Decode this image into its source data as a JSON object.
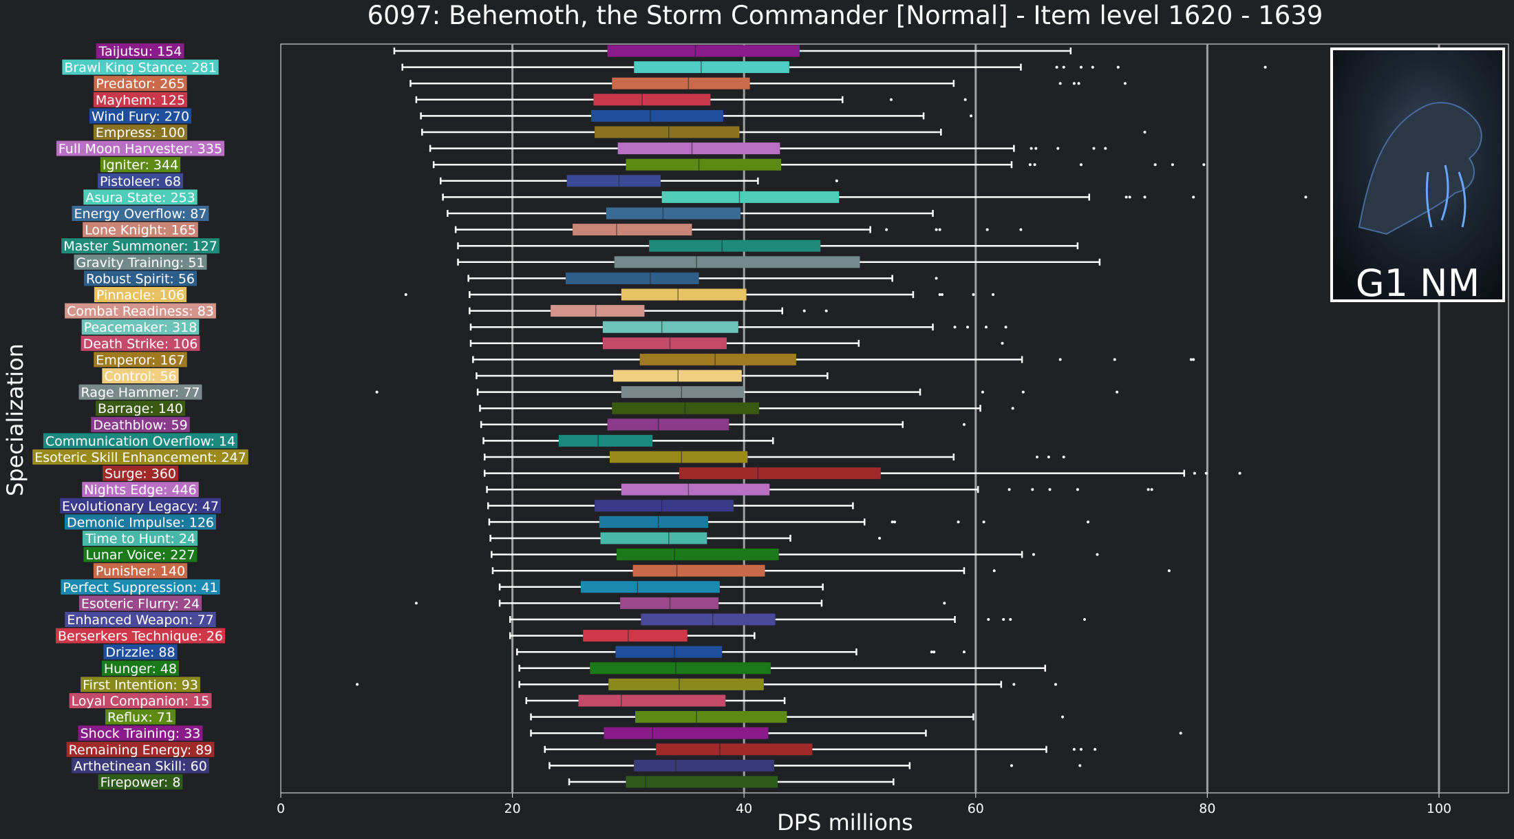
{
  "chart_data": {
    "type": "box",
    "title": "6097: Behemoth, the Storm Commander [Normal] - Item level 1620 - 1639",
    "xlabel": "DPS millions",
    "ylabel": "Specialization",
    "xlim": [
      0,
      106
    ],
    "xticks": [
      0,
      20,
      40,
      60,
      80,
      100
    ],
    "vertical_lines": [
      20,
      40,
      60,
      80,
      100
    ],
    "grid": false,
    "thumbnail_label": "G1 NM",
    "series": [
      {
        "label": "Taijutsu: 154",
        "color": "#8b1a8b",
        "min": 9.8,
        "q1": 28.2,
        "median": 35.8,
        "q3": 44.8,
        "max": 68.2,
        "outliers": []
      },
      {
        "label": "Brawl King Stance: 281",
        "color": "#4ecdc4",
        "min": 10.5,
        "q1": 30.5,
        "median": 36.3,
        "q3": 43.9,
        "max": 63.9,
        "outliers": [
          67.0,
          67.6,
          69.1,
          70.1,
          72.3,
          85.0
        ]
      },
      {
        "label": "Predator: 265",
        "color": "#c96a4a",
        "min": 11.2,
        "q1": 28.6,
        "median": 35.2,
        "q3": 40.5,
        "max": 58.1,
        "outliers": [
          67.3,
          68.5,
          68.9,
          72.9
        ]
      },
      {
        "label": "Mayhem: 125",
        "color": "#c8384a",
        "min": 11.7,
        "q1": 27.0,
        "median": 31.2,
        "q3": 37.1,
        "max": 48.5,
        "outliers": [
          52.7,
          59.1
        ]
      },
      {
        "label": "Wind Fury: 270",
        "color": "#1f4e9c",
        "min": 12.1,
        "q1": 26.8,
        "median": 31.9,
        "q3": 38.2,
        "max": 55.5,
        "outliers": [
          59.6
        ]
      },
      {
        "label": "Empress: 100",
        "color": "#8a7321",
        "min": 12.2,
        "q1": 27.1,
        "median": 33.5,
        "q3": 39.6,
        "max": 57.0,
        "outliers": [
          74.6
        ]
      },
      {
        "label": "Full Moon Harvester: 335",
        "color": "#b86fc4",
        "min": 12.9,
        "q1": 29.1,
        "median": 35.5,
        "q3": 43.1,
        "max": 63.3,
        "outliers": [
          64.8,
          65.2,
          67.1,
          70.2,
          71.2
        ]
      },
      {
        "label": "Igniter: 344",
        "color": "#5c8a12",
        "min": 13.2,
        "q1": 29.8,
        "median": 36.1,
        "q3": 43.2,
        "max": 63.1,
        "outliers": [
          64.7,
          65.1,
          69.1,
          75.5,
          77.0,
          79.7
        ]
      },
      {
        "label": "Pistoleer: 68",
        "color": "#3b4a96",
        "min": 13.8,
        "q1": 24.7,
        "median": 29.2,
        "q3": 32.8,
        "max": 41.2,
        "outliers": [
          48.0
        ]
      },
      {
        "label": "Asura State: 253",
        "color": "#4ecdb8",
        "min": 14.0,
        "q1": 32.9,
        "median": 39.6,
        "q3": 48.2,
        "max": 69.8,
        "outliers": [
          73.0,
          73.3,
          74.6,
          78.8,
          88.5
        ]
      },
      {
        "label": "Energy Overflow: 87",
        "color": "#3a6b96",
        "min": 14.4,
        "q1": 28.1,
        "median": 33.0,
        "q3": 39.7,
        "max": 56.3,
        "outliers": []
      },
      {
        "label": "Lone Knight: 165",
        "color": "#c98676",
        "min": 15.1,
        "q1": 25.2,
        "median": 29.0,
        "q3": 35.5,
        "max": 50.9,
        "outliers": [
          52.3,
          56.6,
          56.9,
          61.0,
          63.9
        ]
      },
      {
        "label": "Master Summoner: 127",
        "color": "#1d8a7a",
        "min": 15.3,
        "q1": 31.8,
        "median": 38.1,
        "q3": 46.6,
        "max": 68.8,
        "outliers": []
      },
      {
        "label": "Gravity Training: 51",
        "color": "#738a8c",
        "min": 15.3,
        "q1": 28.8,
        "median": 35.9,
        "q3": 50.0,
        "max": 70.7,
        "outliers": []
      },
      {
        "label": "Robust Spirit: 56",
        "color": "#2e5f8a",
        "min": 16.2,
        "q1": 24.6,
        "median": 31.9,
        "q3": 36.1,
        "max": 52.8,
        "outliers": [
          56.6
        ]
      },
      {
        "label": "Pinnacle: 106",
        "color": "#e8c160",
        "min": 16.3,
        "q1": 29.4,
        "median": 34.3,
        "q3": 40.2,
        "max": 54.6,
        "outliers": [
          10.8,
          56.9,
          57.1,
          59.8,
          61.5
        ]
      },
      {
        "label": "Combat Readiness: 83",
        "color": "#d4968c",
        "min": 16.3,
        "q1": 23.3,
        "median": 27.2,
        "q3": 31.4,
        "max": 43.3,
        "outliers": [
          45.2,
          47.1
        ]
      },
      {
        "label": "Peacemaker: 318",
        "color": "#6cc4b8",
        "min": 16.4,
        "q1": 27.8,
        "median": 32.9,
        "q3": 39.5,
        "max": 56.3,
        "outliers": [
          58.2,
          59.3,
          60.9,
          62.6
        ]
      },
      {
        "label": "Death Strike: 106",
        "color": "#c44a6a",
        "min": 16.4,
        "q1": 27.8,
        "median": 33.6,
        "q3": 38.5,
        "max": 49.9,
        "outliers": [
          62.3
        ]
      },
      {
        "label": "Emperor: 167",
        "color": "#a07a20",
        "min": 16.6,
        "q1": 31.0,
        "median": 37.5,
        "q3": 44.5,
        "max": 64.0,
        "outliers": [
          67.3,
          72.0,
          78.6,
          78.8
        ]
      },
      {
        "label": "Control: 56",
        "color": "#f0d080",
        "min": 16.9,
        "q1": 28.7,
        "median": 34.3,
        "q3": 39.8,
        "max": 47.2,
        "outliers": []
      },
      {
        "label": "Rage Hammer: 77",
        "color": "#7a8a8a",
        "min": 17.0,
        "q1": 29.4,
        "median": 34.6,
        "q3": 40.0,
        "max": 55.2,
        "outliers": [
          8.3,
          60.6,
          64.1,
          72.2
        ]
      },
      {
        "label": "Barrage: 140",
        "color": "#3a5a12",
        "min": 17.2,
        "q1": 28.6,
        "median": 34.9,
        "q3": 41.3,
        "max": 60.4,
        "outliers": [
          63.2
        ]
      },
      {
        "label": "Deathblow: 59",
        "color": "#8a3a8a",
        "min": 17.3,
        "q1": 28.2,
        "median": 32.6,
        "q3": 38.7,
        "max": 53.7,
        "outliers": [
          59.0
        ]
      },
      {
        "label": "Communication Overflow: 14",
        "color": "#1a8a80",
        "min": 17.5,
        "q1": 24.0,
        "median": 27.4,
        "q3": 32.1,
        "max": 42.5,
        "outliers": []
      },
      {
        "label": "Esoteric Skill Enhancement: 247",
        "color": "#9a8a1a",
        "min": 17.6,
        "q1": 28.4,
        "median": 34.6,
        "q3": 40.3,
        "max": 58.1,
        "outliers": [
          65.3,
          66.3,
          67.6
        ]
      },
      {
        "label": "Surge: 360",
        "color": "#a02a2a",
        "min": 17.6,
        "q1": 34.4,
        "median": 41.2,
        "q3": 51.8,
        "max": 78.0,
        "outliers": [
          78.9,
          79.9,
          82.8
        ]
      },
      {
        "label": "Nights Edge: 446",
        "color": "#b86fc4",
        "min": 17.8,
        "q1": 29.4,
        "median": 35.2,
        "q3": 42.2,
        "max": 60.2,
        "outliers": [
          62.9,
          64.9,
          66.4,
          68.8,
          74.9,
          75.2
        ]
      },
      {
        "label": "Evolutionary Legacy: 47",
        "color": "#3a3a8a",
        "min": 17.9,
        "q1": 27.1,
        "median": 32.9,
        "q3": 39.1,
        "max": 49.4,
        "outliers": []
      },
      {
        "label": "Demonic Impulse: 126",
        "color": "#1a7aa0",
        "min": 18.0,
        "q1": 27.5,
        "median": 32.6,
        "q3": 36.9,
        "max": 50.4,
        "outliers": [
          52.8,
          53.0,
          58.5,
          60.7,
          69.7
        ]
      },
      {
        "label": "Time to Hunt: 24",
        "color": "#4ab8a8",
        "min": 18.1,
        "q1": 27.6,
        "median": 33.5,
        "q3": 36.8,
        "max": 44.0,
        "outliers": [
          51.7
        ]
      },
      {
        "label": "Lunar Voice: 227",
        "color": "#1a7a1a",
        "min": 18.2,
        "q1": 29.0,
        "median": 34.0,
        "q3": 43.0,
        "max": 64.0,
        "outliers": [
          65.0,
          70.5
        ]
      },
      {
        "label": "Punisher: 140",
        "color": "#c86a4a",
        "min": 18.3,
        "q1": 30.4,
        "median": 34.2,
        "q3": 41.8,
        "max": 59.0,
        "outliers": [
          61.6,
          76.7
        ]
      },
      {
        "label": "Perfect Suppression: 41",
        "color": "#1a8ab0",
        "min": 18.9,
        "q1": 25.9,
        "median": 30.8,
        "q3": 37.9,
        "max": 46.8,
        "outliers": []
      },
      {
        "label": "Esoteric Flurry: 24",
        "color": "#9a4a8a",
        "min": 18.9,
        "q1": 29.3,
        "median": 33.6,
        "q3": 37.8,
        "max": 46.7,
        "outliers": [
          11.7,
          57.3
        ]
      },
      {
        "label": "Enhanced Weapon: 77",
        "color": "#4a4a9a",
        "min": 19.8,
        "q1": 31.1,
        "median": 37.3,
        "q3": 42.7,
        "max": 58.2,
        "outliers": [
          61.1,
          62.4,
          63.0,
          69.4
        ]
      },
      {
        "label": "Berserkers Technique: 26",
        "color": "#d0384a",
        "min": 19.8,
        "q1": 26.1,
        "median": 30.0,
        "q3": 35.1,
        "max": 40.9,
        "outliers": []
      },
      {
        "label": "Drizzle: 88",
        "color": "#1f4e9c",
        "min": 20.4,
        "q1": 28.9,
        "median": 34.0,
        "q3": 38.1,
        "max": 49.7,
        "outliers": [
          56.2,
          56.4,
          59.0
        ]
      },
      {
        "label": "Hunger: 48",
        "color": "#1a7a1a",
        "min": 20.6,
        "q1": 26.7,
        "median": 34.1,
        "q3": 42.3,
        "max": 66.0,
        "outliers": []
      },
      {
        "label": "First Intention: 93",
        "color": "#8a8a1a",
        "min": 20.6,
        "q1": 28.3,
        "median": 34.4,
        "q3": 41.7,
        "max": 62.2,
        "outliers": [
          6.6,
          63.3,
          66.9
        ]
      },
      {
        "label": "Loyal Companion: 15",
        "color": "#c44a6a",
        "min": 21.2,
        "q1": 25.7,
        "median": 29.4,
        "q3": 38.4,
        "max": 43.5,
        "outliers": []
      },
      {
        "label": "Reflux: 71",
        "color": "#5c8a12",
        "min": 21.6,
        "q1": 30.6,
        "median": 35.9,
        "q3": 43.7,
        "max": 59.8,
        "outliers": [
          67.5
        ]
      },
      {
        "label": "Shock Training: 33",
        "color": "#8a1a8a",
        "min": 21.6,
        "q1": 27.9,
        "median": 32.1,
        "q3": 42.1,
        "max": 55.7,
        "outliers": [
          77.7
        ]
      },
      {
        "label": "Remaining Energy: 89",
        "color": "#a02a2a",
        "min": 22.8,
        "q1": 32.4,
        "median": 37.9,
        "q3": 45.9,
        "max": 66.1,
        "outliers": [
          68.5,
          69.1,
          70.3
        ]
      },
      {
        "label": "Arthetinean Skill: 60",
        "color": "#3a3a7a",
        "min": 23.2,
        "q1": 30.5,
        "median": 34.1,
        "q3": 42.6,
        "max": 54.3,
        "outliers": [
          63.1,
          69.0
        ]
      },
      {
        "label": "Firepower: 8",
        "color": "#2e5a1a",
        "min": 24.9,
        "q1": 29.8,
        "median": 31.5,
        "q3": 42.9,
        "max": 52.9,
        "outliers": []
      }
    ]
  }
}
